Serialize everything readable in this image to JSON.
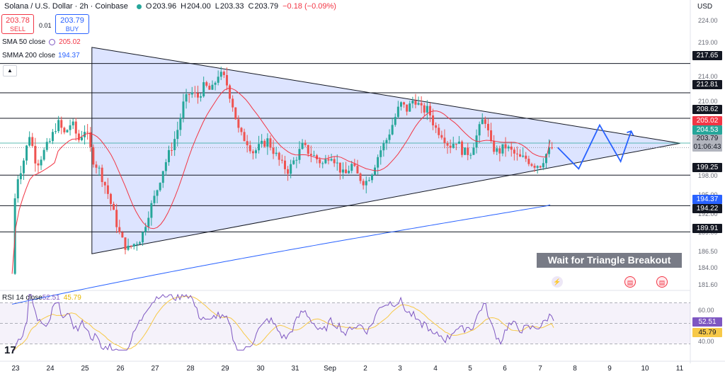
{
  "header": {
    "symbol": "Solana / U.S. Dollar · 2h · Coinbase",
    "o_label": "O",
    "o": "203.96",
    "h_label": "H",
    "h": "204.00",
    "l_label": "L",
    "l": "203.33",
    "c_label": "C",
    "c": "203.79",
    "change": "−0.18 (−0.09%)"
  },
  "trade": {
    "sell_price": "203.78",
    "sell_label": "SELL",
    "spread": "0.01",
    "buy_price": "203.79",
    "buy_label": "BUY"
  },
  "indicators": {
    "sma50_label": "SMA 50 close",
    "sma50_value": "205.02",
    "smma200_label": "SMMA 200 close",
    "smma200_value": "194.37",
    "rsi_label": "RSI 14 close",
    "rsi_value": "52.51",
    "rsi_ma_value": "45.79"
  },
  "currency": "USD",
  "banner": "Wait for Triangle Breakout",
  "price_axis": [
    "224.00",
    "219.00",
    "214.00",
    "210.00",
    "198.00",
    "195.00",
    "192.00",
    "189.00",
    "186.50",
    "184.00",
    "181.60"
  ],
  "rsi_axis": [
    "60.00",
    "40.00"
  ],
  "price_tags": {
    "l217": "217.65",
    "l212": "212.81",
    "l208": "208.62",
    "sma": "205.02",
    "last": "204.53",
    "cur": "203.79",
    "countdown": "01:06:43",
    "l199": "199.25",
    "smma": "194.37",
    "l194": "194.22",
    "l189": "189.91",
    "rsi": "52.51",
    "rsi_ma": "45.79"
  },
  "x_labels": [
    "23",
    "24",
    "25",
    "26",
    "27",
    "28",
    "29",
    "30",
    "31",
    "Sep",
    "2",
    "3",
    "4",
    "5",
    "6",
    "7",
    "8",
    "9",
    "10",
    "11"
  ],
  "chart_data": {
    "type": "candlestick",
    "title": "Solana / U.S. Dollar · 2h · Coinbase",
    "x_categories": [
      "23",
      "24",
      "25",
      "26",
      "27",
      "28",
      "29",
      "30",
      "31",
      "Sep",
      "2",
      "3",
      "4",
      "5",
      "6",
      "7",
      "8",
      "9",
      "10",
      "11"
    ],
    "y_range": [
      180.5,
      226
    ],
    "horizontal_levels": [
      217.65,
      212.81,
      208.62,
      199.25,
      194.22,
      189.91
    ],
    "triangle": {
      "upper": [
        [
          "25",
          220.3
        ],
        [
          "11",
          204.5
        ]
      ],
      "lower": [
        [
          "25",
          186.3
        ],
        [
          "11",
          204.5
        ]
      ]
    },
    "close_path": [
      [
        "22.9",
        183
      ],
      [
        "23.0",
        198
      ],
      [
        "23.2",
        201
      ],
      [
        "23.4",
        206
      ],
      [
        "23.6",
        201
      ],
      [
        "23.8",
        203
      ],
      [
        "24.0",
        205
      ],
      [
        "24.2",
        208
      ],
      [
        "24.4",
        206
      ],
      [
        "24.6",
        208
      ],
      [
        "24.8",
        205
      ],
      [
        "25.0",
        207
      ],
      [
        "25.2",
        202
      ],
      [
        "25.4",
        200
      ],
      [
        "25.6",
        197
      ],
      [
        "25.8",
        193
      ],
      [
        "26.0",
        189
      ],
      [
        "26.2",
        187
      ],
      [
        "26.4",
        188
      ],
      [
        "26.6",
        189
      ],
      [
        "26.8",
        193
      ],
      [
        "27.0",
        196
      ],
      [
        "27.2",
        200
      ],
      [
        "27.4",
        203
      ],
      [
        "27.6",
        206
      ],
      [
        "27.8",
        211
      ],
      [
        "28.0",
        213
      ],
      [
        "28.2",
        212
      ],
      [
        "28.4",
        214
      ],
      [
        "28.6",
        213
      ],
      [
        "28.8",
        216
      ],
      [
        "29.0",
        215
      ],
      [
        "29.2",
        211
      ],
      [
        "29.4",
        206
      ],
      [
        "29.6",
        205
      ],
      [
        "29.8",
        203
      ],
      [
        "30.0",
        204
      ],
      [
        "30.2",
        205
      ],
      [
        "30.4",
        203
      ],
      [
        "30.6",
        201
      ],
      [
        "30.8",
        200
      ],
      [
        "31.0",
        202
      ],
      [
        "31.2",
        204
      ],
      [
        "31.4",
        203
      ],
      [
        "31.6",
        202
      ],
      [
        "31.8",
        201
      ],
      [
        "1.0",
        203
      ],
      [
        "1.2",
        201
      ],
      [
        "1.4",
        199
      ],
      [
        "1.6",
        201
      ],
      [
        "1.8",
        199
      ],
      [
        "2.0",
        198
      ],
      [
        "2.2",
        200
      ],
      [
        "2.4",
        203
      ],
      [
        "2.6",
        205
      ],
      [
        "2.8",
        208
      ],
      [
        "3.0",
        211
      ],
      [
        "3.2",
        210
      ],
      [
        "3.4",
        212
      ],
      [
        "3.6",
        210
      ],
      [
        "3.8",
        210
      ],
      [
        "4.0",
        207
      ],
      [
        "4.2",
        206
      ],
      [
        "4.4",
        204
      ],
      [
        "4.6",
        205
      ],
      [
        "4.8",
        203
      ],
      [
        "5.0",
        203
      ],
      [
        "5.2",
        206
      ],
      [
        "5.4",
        209
      ],
      [
        "5.6",
        204
      ],
      [
        "5.8",
        203
      ],
      [
        "6.0",
        204
      ],
      [
        "6.2",
        203
      ],
      [
        "6.4",
        202
      ],
      [
        "6.6",
        202
      ],
      [
        "6.8",
        201
      ],
      [
        "7.0",
        201
      ],
      [
        "7.2",
        203
      ],
      [
        "7.4",
        204
      ]
    ],
    "sma50_end": 205.02,
    "smma200_end": 194.37,
    "projection": [
      [
        "7.5",
        203.8
      ],
      [
        "8.1",
        200.3
      ],
      [
        "8.7",
        207.5
      ],
      [
        "9.3",
        201.5
      ],
      [
        "9.6",
        206.5
      ]
    ],
    "rsi": {
      "value": 52.51,
      "ma": 45.79,
      "levels": [
        70,
        50,
        30
      ]
    }
  }
}
